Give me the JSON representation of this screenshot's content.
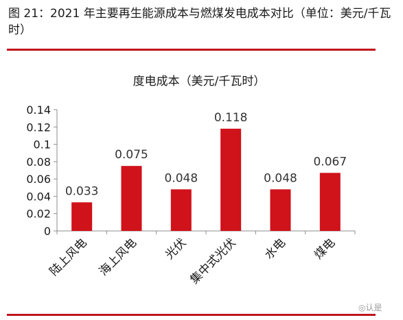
{
  "figure": {
    "title": "图 21：2021 年主要再生能源成本与燃煤发电成本对比（单位：美元/千瓦时）"
  },
  "chart_data": {
    "type": "bar",
    "title": "度电成本（美元/千瓦时）",
    "categories": [
      "陆上风电",
      "海上风电",
      "光伏",
      "集中式光伏",
      "水电",
      "煤电"
    ],
    "values": [
      0.033,
      0.075,
      0.048,
      0.118,
      0.048,
      0.067
    ],
    "value_labels": [
      "0.033",
      "0.075",
      "0.048",
      "0.118",
      "0.048",
      "0.067"
    ],
    "ylim": [
      0,
      0.14
    ],
    "yticks": [
      "0",
      "0.02",
      "0.04",
      "0.06",
      "0.08",
      "0.1",
      "0.12",
      "0.14"
    ],
    "xlabel": "",
    "ylabel": "",
    "grid": false,
    "bar_color": "#d0121b"
  },
  "watermark": "◎认是"
}
